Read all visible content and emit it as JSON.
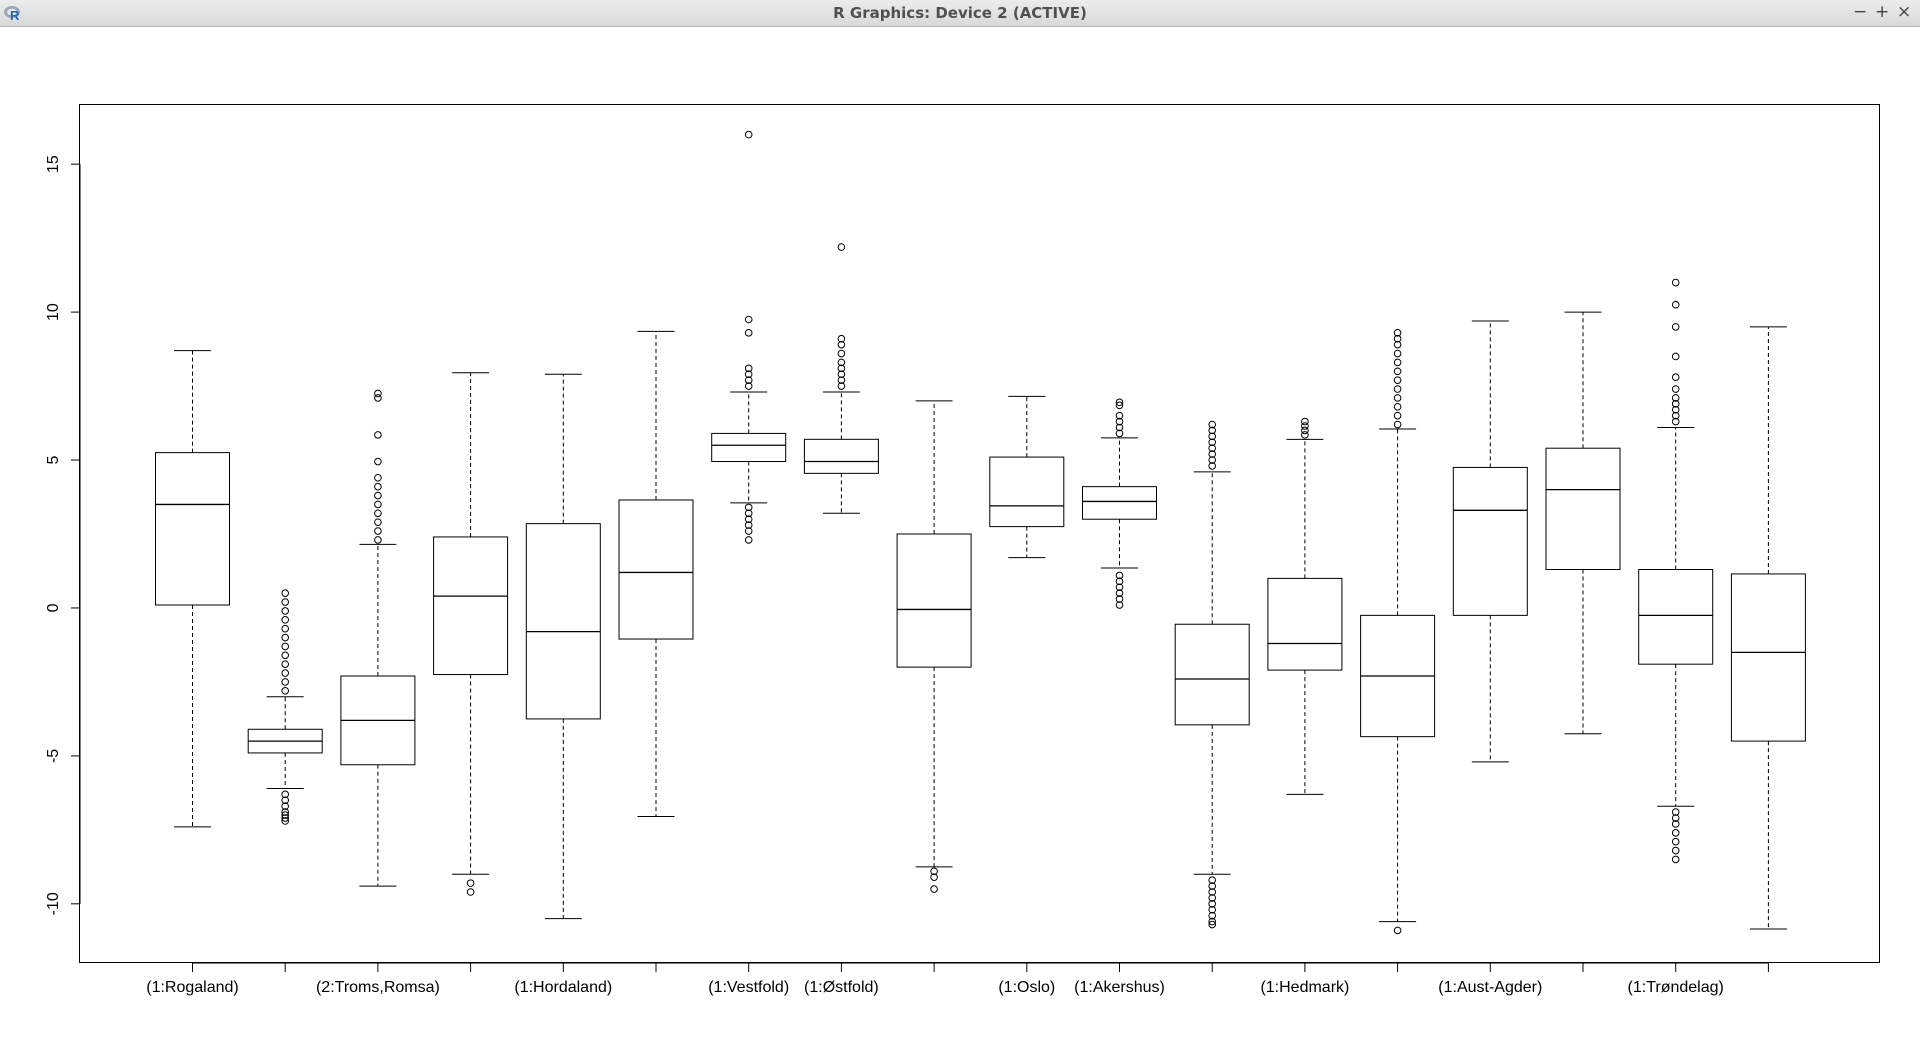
{
  "window": {
    "title": "R Graphics: Device 2 (ACTIVE)",
    "icon": "r-logo-icon",
    "app_letter": "R",
    "controls": {
      "minimize": "−",
      "maximize": "+",
      "close": "×"
    }
  },
  "chart_data": {
    "type": "boxplot",
    "title": "",
    "xlabel": "",
    "ylabel": "",
    "ylim": [
      -12,
      17
    ],
    "yticks": [
      -10,
      -5,
      0,
      5,
      10,
      15
    ],
    "x_tick_labels": [
      "(1:Rogaland)",
      "",
      "(2:Troms,Romsa)",
      "",
      "(1:Hordaland)",
      "",
      "(1:Vestfold)",
      "(1:Østfold)",
      "",
      "(1:Oslo)",
      "(1:Akershus)",
      "",
      "(1:Hedmark)",
      "",
      "(1:Aust-Agder)",
      "",
      "(1:Trøndelag)",
      ""
    ],
    "boxes": [
      {
        "whisker_low": -7.4,
        "q1": 0.1,
        "median": 3.5,
        "q3": 5.25,
        "whisker_high": 8.7,
        "outliers_low": [],
        "outliers_high": []
      },
      {
        "whisker_low": -6.1,
        "q1": -4.9,
        "median": -4.5,
        "q3": -4.1,
        "whisker_high": -3.0,
        "outliers_low": [
          -6.3,
          -6.5,
          -6.7,
          -6.9,
          -7.0,
          -7.1,
          -7.2
        ],
        "outliers_high": [
          -2.8,
          -2.5,
          -2.2,
          -1.9,
          -1.6,
          -1.3,
          -1.0,
          -0.7,
          -0.4,
          -0.1,
          0.2,
          0.5
        ]
      },
      {
        "whisker_low": -9.4,
        "q1": -5.3,
        "median": -3.8,
        "q3": -2.3,
        "whisker_high": 2.15,
        "outliers_low": [],
        "outliers_high": [
          2.3,
          2.6,
          2.9,
          3.2,
          3.5,
          3.8,
          4.1,
          4.4,
          4.95,
          5.85,
          7.1,
          7.25
        ]
      },
      {
        "whisker_low": -9.0,
        "q1": -2.25,
        "median": 0.4,
        "q3": 2.4,
        "whisker_high": 7.95,
        "outliers_low": [
          -9.3,
          -9.6
        ],
        "outliers_high": []
      },
      {
        "whisker_low": -10.5,
        "q1": -3.75,
        "median": -0.8,
        "q3": 2.85,
        "whisker_high": 7.9,
        "outliers_low": [],
        "outliers_high": []
      },
      {
        "whisker_low": -7.05,
        "q1": -1.05,
        "median": 1.2,
        "q3": 3.65,
        "whisker_high": 9.35,
        "outliers_low": [],
        "outliers_high": []
      },
      {
        "whisker_low": 3.55,
        "q1": 4.95,
        "median": 5.5,
        "q3": 5.9,
        "whisker_high": 7.3,
        "outliers_low": [
          3.4,
          3.2,
          3.0,
          2.8,
          2.6,
          2.3
        ],
        "outliers_high": [
          7.5,
          7.7,
          7.9,
          8.1,
          9.3,
          9.75,
          16.0
        ]
      },
      {
        "whisker_low": 3.2,
        "q1": 4.55,
        "median": 4.95,
        "q3": 5.7,
        "whisker_high": 7.3,
        "outliers_low": [],
        "outliers_high": [
          7.5,
          7.7,
          7.9,
          8.1,
          8.3,
          8.6,
          8.9,
          9.1,
          12.2
        ]
      },
      {
        "whisker_low": -8.75,
        "q1": -2.0,
        "median": -0.05,
        "q3": 2.5,
        "whisker_high": 7.0,
        "outliers_low": [
          -8.9,
          -9.1,
          -9.5
        ],
        "outliers_high": []
      },
      {
        "whisker_low": 1.7,
        "q1": 2.75,
        "median": 3.45,
        "q3": 5.1,
        "whisker_high": 7.15,
        "outliers_low": [],
        "outliers_high": []
      },
      {
        "whisker_low": 1.35,
        "q1": 3.0,
        "median": 3.6,
        "q3": 4.1,
        "whisker_high": 5.75,
        "outliers_low": [
          1.1,
          0.9,
          0.7,
          0.5,
          0.3,
          0.1
        ],
        "outliers_high": [
          5.9,
          6.1,
          6.3,
          6.5,
          6.85,
          6.95
        ]
      },
      {
        "whisker_low": -9.0,
        "q1": -3.95,
        "median": -2.4,
        "q3": -0.55,
        "whisker_high": 4.6,
        "outliers_low": [
          -9.2,
          -9.4,
          -9.6,
          -9.8,
          -10.0,
          -10.2,
          -10.4,
          -10.6,
          -10.7
        ],
        "outliers_high": [
          4.8,
          5.0,
          5.2,
          5.4,
          5.6,
          5.8,
          6.0,
          6.2
        ]
      },
      {
        "whisker_low": -6.3,
        "q1": -2.1,
        "median": -1.2,
        "q3": 1.0,
        "whisker_high": 5.7,
        "outliers_low": [],
        "outliers_high": [
          5.85,
          6.0,
          6.15,
          6.3
        ]
      },
      {
        "whisker_low": -10.6,
        "q1": -4.35,
        "median": -2.3,
        "q3": -0.25,
        "whisker_high": 6.05,
        "outliers_low": [
          -10.9
        ],
        "outliers_high": [
          6.2,
          6.5,
          6.8,
          7.1,
          7.4,
          7.7,
          8.0,
          8.3,
          8.6,
          8.9,
          9.1,
          9.3
        ]
      },
      {
        "whisker_low": -5.2,
        "q1": -0.25,
        "median": 3.3,
        "q3": 4.75,
        "whisker_high": 9.7,
        "outliers_low": [],
        "outliers_high": []
      },
      {
        "whisker_low": -4.25,
        "q1": 1.3,
        "median": 4.0,
        "q3": 5.4,
        "whisker_high": 10.0,
        "outliers_low": [],
        "outliers_high": []
      },
      {
        "whisker_low": -6.7,
        "q1": -1.9,
        "median": -0.25,
        "q3": 1.3,
        "whisker_high": 6.1,
        "outliers_low": [
          -6.9,
          -7.1,
          -7.3,
          -7.6,
          -7.9,
          -8.2,
          -8.5
        ],
        "outliers_high": [
          6.3,
          6.5,
          6.7,
          6.9,
          7.1,
          7.4,
          7.8,
          8.5,
          9.5,
          10.25,
          11.0
        ]
      },
      {
        "whisker_low": -10.85,
        "q1": -4.5,
        "median": -1.5,
        "q3": 1.15,
        "whisker_high": 9.5,
        "outliers_low": [],
        "outliers_high": []
      }
    ]
  }
}
